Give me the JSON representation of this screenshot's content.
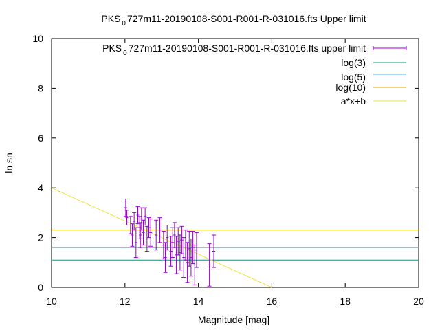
{
  "chart_data": {
    "type": "scatter",
    "title_prefix": "PKS",
    "title_subscript": "0",
    "title_suffix": "727m11-20190108-S001-R001-R-031016.fts Upper limit",
    "xlabel": "Magnitude [mag]",
    "ylabel": "ln sn",
    "xlim": [
      10,
      20
    ],
    "ylim": [
      0,
      10
    ],
    "xticks": [
      "10",
      "12",
      "14",
      "16",
      "18",
      "20"
    ],
    "yticks": [
      "0",
      "2",
      "4",
      "6",
      "8",
      "10"
    ],
    "grid": false,
    "legend_position": "top-right",
    "colors": {
      "points": "#9400d3",
      "log3": "#009e73",
      "log5": "#56b4e9",
      "log10": "#e69f00",
      "fit": "#f0e442"
    },
    "series": [
      {
        "name_prefix": "PKS",
        "name_subscript": "0",
        "name_suffix": "727m11-20190108-S001-R001-R-031016.fts upper limit",
        "kind": "errorbars",
        "points": [
          {
            "x": 12.02,
            "y": 3.2,
            "err": 0.35
          },
          {
            "x": 12.05,
            "y": 2.8,
            "err": 0.3
          },
          {
            "x": 12.15,
            "y": 2.5,
            "err": 0.35
          },
          {
            "x": 12.2,
            "y": 2.1,
            "err": 0.45
          },
          {
            "x": 12.25,
            "y": 2.65,
            "err": 0.35
          },
          {
            "x": 12.3,
            "y": 1.8,
            "err": 0.6
          },
          {
            "x": 12.35,
            "y": 2.9,
            "err": 0.35
          },
          {
            "x": 12.4,
            "y": 2.4,
            "err": 0.45
          },
          {
            "x": 12.42,
            "y": 2.1,
            "err": 0.5
          },
          {
            "x": 12.45,
            "y": 2.75,
            "err": 0.45
          },
          {
            "x": 12.5,
            "y": 2.2,
            "err": 0.5
          },
          {
            "x": 12.55,
            "y": 2.85,
            "err": 0.35
          },
          {
            "x": 12.6,
            "y": 1.95,
            "err": 0.5
          },
          {
            "x": 12.65,
            "y": 2.4,
            "err": 0.4
          },
          {
            "x": 12.7,
            "y": 2.2,
            "err": 0.55
          },
          {
            "x": 12.85,
            "y": 2.1,
            "err": 0.6
          },
          {
            "x": 12.95,
            "y": 2.3,
            "err": 0.5
          },
          {
            "x": 13.05,
            "y": 1.7,
            "err": 0.55
          },
          {
            "x": 13.1,
            "y": 1.2,
            "err": 0.6
          },
          {
            "x": 13.15,
            "y": 2.0,
            "err": 0.5
          },
          {
            "x": 13.25,
            "y": 1.45,
            "err": 0.6
          },
          {
            "x": 13.3,
            "y": 1.8,
            "err": 0.6
          },
          {
            "x": 13.35,
            "y": 2.1,
            "err": 0.5
          },
          {
            "x": 13.4,
            "y": 1.3,
            "err": 0.75
          },
          {
            "x": 13.45,
            "y": 1.85,
            "err": 0.55
          },
          {
            "x": 13.5,
            "y": 1.4,
            "err": 0.7
          },
          {
            "x": 13.55,
            "y": 1.9,
            "err": 0.55
          },
          {
            "x": 13.6,
            "y": 1.2,
            "err": 0.8
          },
          {
            "x": 13.65,
            "y": 1.7,
            "err": 0.6
          },
          {
            "x": 13.7,
            "y": 1.0,
            "err": 0.8
          },
          {
            "x": 13.75,
            "y": 1.55,
            "err": 0.7
          },
          {
            "x": 13.8,
            "y": 1.2,
            "err": 0.75
          },
          {
            "x": 13.85,
            "y": 1.6,
            "err": 0.65
          },
          {
            "x": 13.9,
            "y": 0.9,
            "err": 0.8
          },
          {
            "x": 13.95,
            "y": 1.5,
            "err": 0.7
          },
          {
            "x": 14.3,
            "y": 0.9,
            "err": 0.85
          },
          {
            "x": 14.42,
            "y": 1.45,
            "err": 0.65
          }
        ]
      },
      {
        "name": "log(3)",
        "kind": "hline",
        "y": 1.0986
      },
      {
        "name": "log(5)",
        "kind": "hline",
        "y": 1.6094
      },
      {
        "name": "log(10)",
        "kind": "hline",
        "y": 2.3026
      },
      {
        "name": "a*x+b",
        "kind": "fit",
        "slope": -0.6667,
        "intercept": 10.667
      }
    ]
  }
}
